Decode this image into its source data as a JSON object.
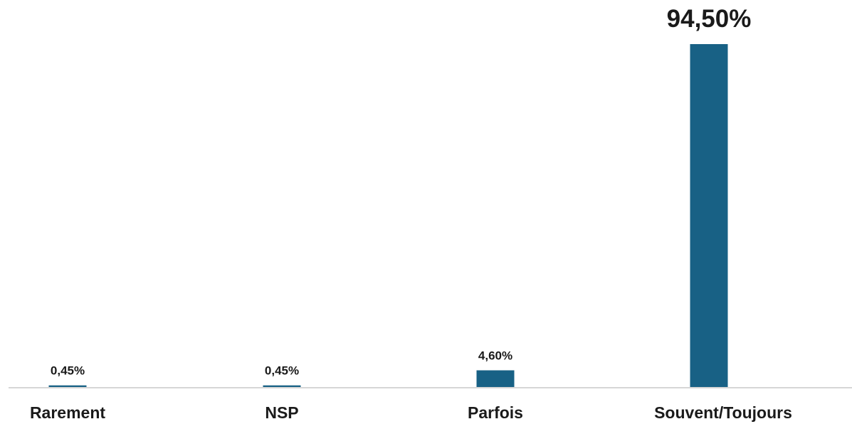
{
  "chart_data": {
    "type": "bar",
    "categories": [
      "Rarement",
      "NSP",
      "Parfois",
      "Souvent/Toujours"
    ],
    "values": [
      0.45,
      0.45,
      4.6,
      94.5
    ],
    "data_labels": [
      "0,45%",
      "0,45%",
      "4,60%",
      "94,50%"
    ],
    "ylim": [
      0,
      100
    ],
    "grid": false,
    "legend": "none",
    "colors": {
      "bar": "#186185",
      "axis": "#c8c8c8",
      "text": "#1a1a1a"
    }
  }
}
